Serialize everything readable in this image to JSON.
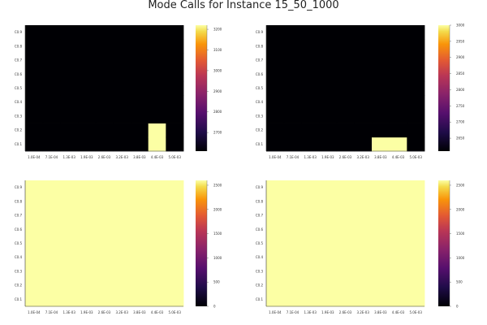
{
  "title": "Mode Calls for Instance 15_50_1000",
  "chart_data": [
    {
      "type": "heatmap",
      "x_categories": [
        "1.0E-04",
        "7.1E-04",
        "1.3E-03",
        "1.9E-03",
        "2.6E-03",
        "3.2E-03",
        "3.8E-03",
        "4.4E-03",
        "5.0E-03"
      ],
      "y_categories": [
        "C0.1",
        "C0.2",
        "C0.3",
        "C0.4",
        "C0.5",
        "C0.6",
        "C0.7",
        "C0.8",
        "C0.9"
      ],
      "colorbar_ticks": [
        2700,
        2800,
        2900,
        3000,
        3100,
        3200
      ],
      "clim": [
        2610,
        3220
      ],
      "default_value": 2610,
      "highlight_cells": [
        {
          "x": "4.4E-03",
          "y": "C0.1",
          "value": 3220
        },
        {
          "x": "4.4E-03",
          "y": "C0.2",
          "value": 3220
        }
      ]
    },
    {
      "type": "heatmap",
      "x_categories": [
        "1.0E-04",
        "7.1E-04",
        "1.3E-03",
        "1.9E-03",
        "2.6E-03",
        "3.2E-03",
        "3.8E-03",
        "4.4E-03",
        "5.0E-03"
      ],
      "y_categories": [
        "C0.1",
        "C0.2",
        "C0.3",
        "C0.4",
        "C0.5",
        "C0.6",
        "C0.7",
        "C0.8",
        "C0.9"
      ],
      "colorbar_ticks": [
        2650,
        2700,
        2750,
        2800,
        2850,
        2900,
        2950,
        3000
      ],
      "clim": [
        2610,
        3000
      ],
      "default_value": 2610,
      "highlight_cells": [
        {
          "x": "3.8E-03",
          "y": "C0.1",
          "value": 3000
        },
        {
          "x": "4.4E-03",
          "y": "C0.1",
          "value": 3000
        }
      ]
    },
    {
      "type": "heatmap",
      "x_categories": [
        "1.0E-04",
        "7.1E-04",
        "1.3E-03",
        "1.9E-03",
        "2.6E-03",
        "3.2E-03",
        "3.8E-03",
        "4.4E-03",
        "5.0E-03"
      ],
      "y_categories": [
        "C0.1",
        "C0.2",
        "C0.3",
        "C0.4",
        "C0.5",
        "C0.6",
        "C0.7",
        "C0.8",
        "C0.9"
      ],
      "colorbar_ticks": [
        0,
        500,
        1000,
        1500,
        2000,
        2500
      ],
      "clim": [
        0,
        2600
      ],
      "default_value": 2600,
      "highlight_cells": []
    },
    {
      "type": "heatmap",
      "x_categories": [
        "1.0E-04",
        "7.1E-04",
        "1.3E-03",
        "1.9E-03",
        "2.6E-03",
        "3.2E-03",
        "3.8E-03",
        "4.4E-03",
        "5.0E-03"
      ],
      "y_categories": [
        "C0.1",
        "C0.2",
        "C0.3",
        "C0.4",
        "C0.5",
        "C0.6",
        "C0.7",
        "C0.8",
        "C0.9"
      ],
      "colorbar_ticks": [
        0,
        500,
        1000,
        1500,
        2000,
        2500
      ],
      "clim": [
        0,
        2600
      ],
      "default_value": 2600,
      "highlight_cells": []
    }
  ]
}
